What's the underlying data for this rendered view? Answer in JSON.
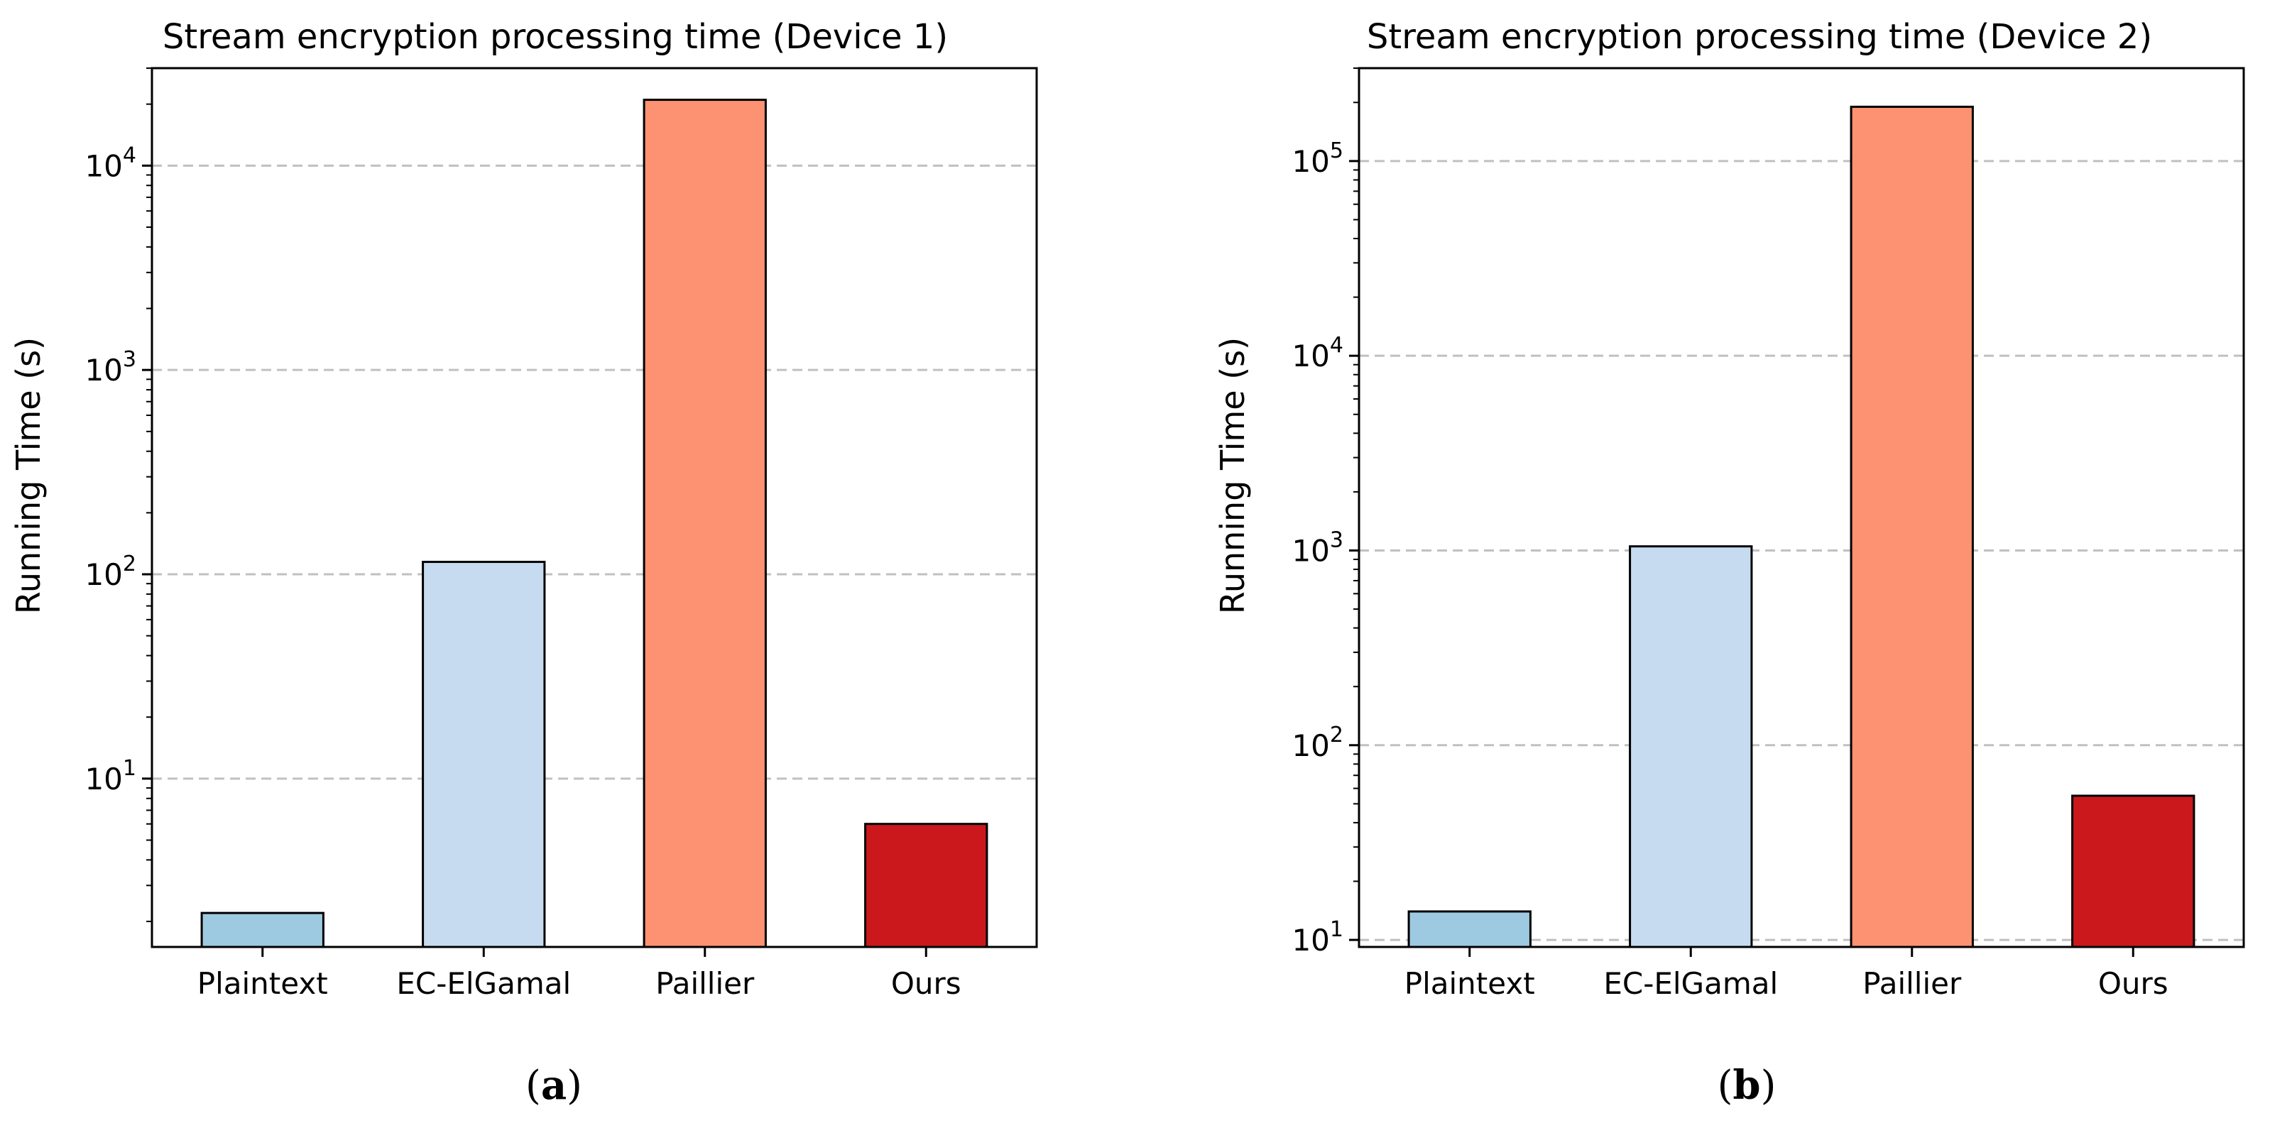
{
  "chart_data": [
    {
      "type": "bar",
      "panel_label": "a",
      "title": "Stream encryption processing time (Device 1)",
      "xlabel": "",
      "ylabel": "Running Time (s)",
      "yscale": "log",
      "ylim": [
        1.5,
        30000
      ],
      "grid": "y-dashed",
      "categories": [
        "Plaintext",
        "EC-ElGamal",
        "Paillier",
        "Ours"
      ],
      "values": [
        2.2,
        115,
        21000,
        6.0
      ],
      "colors": [
        "#9ecae1",
        "#c6dbef",
        "#fc9272",
        "#cb181d"
      ],
      "yticks": [
        {
          "value": 10,
          "base": "10",
          "exp": "1"
        },
        {
          "value": 100,
          "base": "10",
          "exp": "2"
        },
        {
          "value": 1000,
          "base": "10",
          "exp": "3"
        },
        {
          "value": 10000,
          "base": "10",
          "exp": "4"
        }
      ]
    },
    {
      "type": "bar",
      "panel_label": "b",
      "title": "Stream encryption processing time (Device 2)",
      "xlabel": "",
      "ylabel": "Running Time (s)",
      "yscale": "log",
      "ylim": [
        9.2,
        300000
      ],
      "grid": "y-dashed",
      "categories": [
        "Plaintext",
        "EC-ElGamal",
        "Paillier",
        "Ours"
      ],
      "values": [
        14,
        1050,
        190000,
        55
      ],
      "colors": [
        "#9ecae1",
        "#c6dbef",
        "#fc9272",
        "#cb181d"
      ],
      "yticks": [
        {
          "value": 10,
          "base": "10",
          "exp": "1"
        },
        {
          "value": 100,
          "base": "10",
          "exp": "2"
        },
        {
          "value": 1000,
          "base": "10",
          "exp": "3"
        },
        {
          "value": 10000,
          "base": "10",
          "exp": "4"
        },
        {
          "value": 100000,
          "base": "10",
          "exp": "5"
        }
      ]
    }
  ]
}
